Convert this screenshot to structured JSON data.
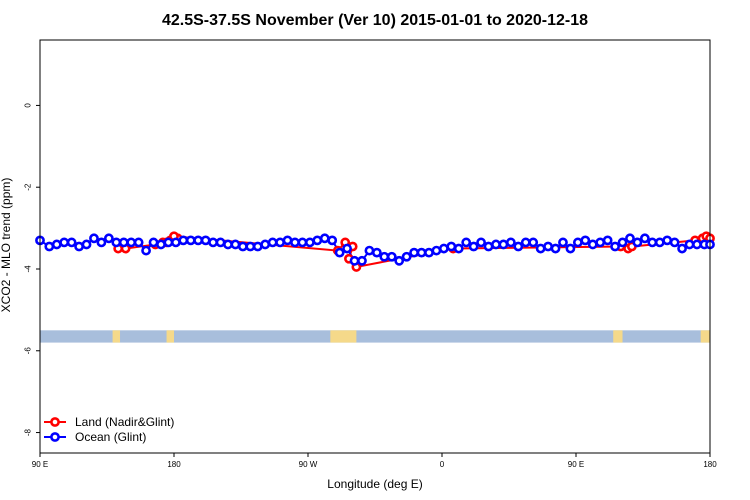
{
  "chart_data": {
    "type": "line",
    "title": "42.5S-37.5S November (Ver 10)   2015-01-01 to 2020-12-18",
    "xlabel": "Longitude (deg E)",
    "ylabel": "XCO2 - MLO trend (ppm)",
    "xlim": [
      90,
      450
    ],
    "ylim": [
      -8.5,
      1.6
    ],
    "x_ticks": [
      {
        "value": 90,
        "label": "90 E"
      },
      {
        "value": 162,
        "label": "180"
      },
      {
        "value": 234,
        "label": "90 W"
      },
      {
        "value": 306,
        "label": "0"
      },
      {
        "value": 378,
        "label": "90 E"
      },
      {
        "value": 450,
        "label": "180"
      }
    ],
    "y_ticks": [
      {
        "value": 0,
        "label": "0"
      },
      {
        "value": -2,
        "label": "-2"
      },
      {
        "value": -4,
        "label": "-4"
      },
      {
        "value": -6,
        "label": "-6"
      },
      {
        "value": -8,
        "label": "-8"
      }
    ],
    "legend_position": "bottom-left",
    "grid": false,
    "series": [
      {
        "name": "Land (Nadir&Glint)",
        "color": "#ff0000",
        "x": [
          132,
          136,
          152,
          156,
          160,
          164,
          158,
          162,
          250,
          254,
          258,
          256,
          260,
          312,
          402,
          406,
          408,
          442,
          446,
          448,
          450
        ],
        "y": [
          -3.5,
          -3.5,
          -3.4,
          -3.35,
          -3.3,
          -3.25,
          -3.35,
          -3.2,
          -3.55,
          -3.35,
          -3.45,
          -3.75,
          -3.95,
          -3.5,
          -3.45,
          -3.5,
          -3.45,
          -3.3,
          -3.25,
          -3.2,
          -3.25
        ]
      },
      {
        "name": "Ocean (Glint)",
        "color": "#0000ff",
        "x": [
          90,
          95,
          99,
          103,
          107,
          111,
          115,
          119,
          123,
          127,
          131,
          135,
          139,
          143,
          147,
          151,
          155,
          159,
          163,
          167,
          171,
          175,
          179,
          183,
          187,
          191,
          195,
          199,
          203,
          207,
          211,
          215,
          219,
          223,
          227,
          231,
          235,
          239,
          243,
          247,
          251,
          255,
          259,
          263,
          267,
          271,
          275,
          279,
          283,
          287,
          291,
          295,
          299,
          303,
          307,
          311,
          315,
          319,
          323,
          327,
          331,
          335,
          339,
          343,
          347,
          351,
          355,
          359,
          363,
          367,
          371,
          375,
          379,
          383,
          387,
          391,
          395,
          399,
          403,
          407,
          411,
          415,
          419,
          423,
          427,
          431,
          435,
          439,
          443,
          447,
          450
        ],
        "y": [
          -3.3,
          -3.45,
          -3.4,
          -3.35,
          -3.35,
          -3.45,
          -3.4,
          -3.25,
          -3.35,
          -3.25,
          -3.35,
          -3.35,
          -3.35,
          -3.35,
          -3.55,
          -3.35,
          -3.4,
          -3.35,
          -3.35,
          -3.3,
          -3.3,
          -3.3,
          -3.3,
          -3.35,
          -3.35,
          -3.4,
          -3.4,
          -3.45,
          -3.45,
          -3.45,
          -3.4,
          -3.35,
          -3.35,
          -3.3,
          -3.35,
          -3.35,
          -3.35,
          -3.3,
          -3.25,
          -3.3,
          -3.6,
          -3.5,
          -3.8,
          -3.8,
          -3.55,
          -3.6,
          -3.7,
          -3.7,
          -3.8,
          -3.7,
          -3.6,
          -3.6,
          -3.6,
          -3.55,
          -3.5,
          -3.45,
          -3.5,
          -3.35,
          -3.45,
          -3.35,
          -3.45,
          -3.4,
          -3.4,
          -3.35,
          -3.45,
          -3.35,
          -3.35,
          -3.5,
          -3.45,
          -3.5,
          -3.35,
          -3.5,
          -3.35,
          -3.3,
          -3.4,
          -3.35,
          -3.3,
          -3.45,
          -3.35,
          -3.25,
          -3.35,
          -3.25,
          -3.35,
          -3.35,
          -3.3,
          -3.35,
          -3.5,
          -3.4,
          -3.4,
          -3.4,
          -3.4
        ]
      }
    ],
    "surface_band": {
      "y_range": [
        -5.8,
        -5.5
      ],
      "ocean_color": "#a8bedc",
      "land_color": "#f5d98a",
      "land_x_ranges": [
        [
          129,
          133
        ],
        [
          158,
          162
        ],
        [
          246,
          260
        ],
        [
          398,
          403
        ],
        [
          445,
          450
        ]
      ]
    }
  }
}
